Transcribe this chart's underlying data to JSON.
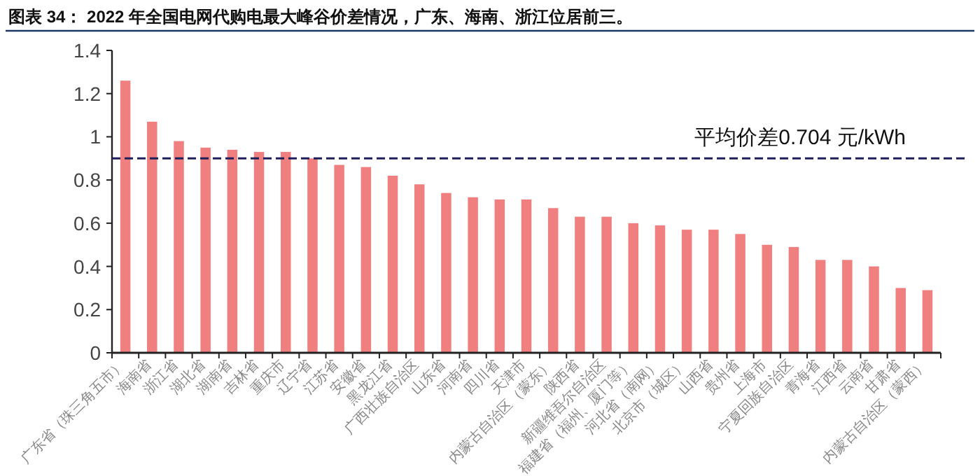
{
  "chart_data": {
    "type": "bar",
    "title": "图表 34： 2022 年全国电网代购电最大峰谷价差情况，广东、海南、浙江位居前三。",
    "categories": [
      "广东省（珠三角五市）",
      "海南省",
      "浙江省",
      "湖北省",
      "湖南省",
      "吉林省",
      "重庆市",
      "辽宁省",
      "江苏省",
      "安徽省",
      "黑龙江省",
      "广西壮族自治区",
      "山东省",
      "河南省",
      "四川省",
      "天津市",
      "内蒙古自治区（蒙东）",
      "陕西省",
      "新疆维吾尔自治区",
      "福建省（福州、厦门等）",
      "河北省（南网）",
      "北京市（城区）",
      "山西省",
      "贵州省",
      "上海市",
      "宁夏回族自治区",
      "青海省",
      "江西省",
      "云南省",
      "甘肃省",
      "内蒙古自治区（蒙西）"
    ],
    "values": [
      1.26,
      1.07,
      0.98,
      0.95,
      0.94,
      0.93,
      0.93,
      0.9,
      0.87,
      0.86,
      0.82,
      0.78,
      0.74,
      0.72,
      0.71,
      0.71,
      0.67,
      0.63,
      0.63,
      0.6,
      0.59,
      0.57,
      0.57,
      0.55,
      0.5,
      0.49,
      0.43,
      0.43,
      0.4,
      0.3,
      0.29
    ],
    "color": "#f08080",
    "ylim": [
      0,
      1.4
    ],
    "yticks": [
      0,
      0.2,
      0.4,
      0.6,
      0.8,
      1,
      1.2,
      1.4
    ],
    "ref_lines": [
      {
        "axis": "y",
        "value": 0.9,
        "label": "平均价差0.704 元/kWh",
        "color": "#1f1f5a",
        "line_style": "dashed"
      }
    ]
  }
}
